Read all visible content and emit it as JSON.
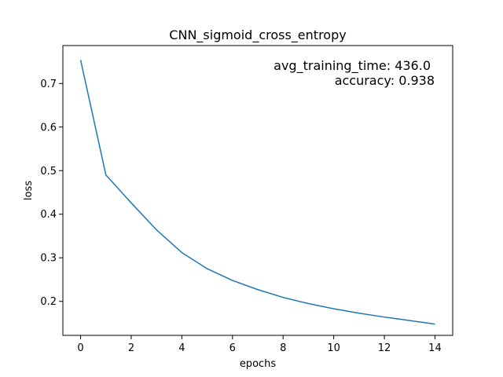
{
  "chart_data": {
    "type": "line",
    "title": "CNN_sigmoid_cross_entropy",
    "xlabel": "epochs",
    "ylabel": "loss",
    "xlim": [
      -0.7,
      14.7
    ],
    "ylim": [
      0.122,
      0.787
    ],
    "xticks": [
      0,
      2,
      4,
      6,
      8,
      10,
      12,
      14
    ],
    "yticks": [
      0.2,
      0.3,
      0.4,
      0.5,
      0.6,
      0.7
    ],
    "grid": false,
    "series": [
      {
        "color": "#1f77b4",
        "x": [
          0,
          1,
          2,
          3,
          4,
          5,
          6,
          7,
          8,
          9,
          10,
          11,
          12,
          13,
          14
        ],
        "y": [
          0.754,
          0.49,
          0.426,
          0.364,
          0.312,
          0.275,
          0.248,
          0.227,
          0.209,
          0.195,
          0.183,
          0.173,
          0.164,
          0.156,
          0.148
        ]
      }
    ],
    "annotations": [
      "avg_training_time: 436.0",
      "accuracy: 0.938"
    ]
  }
}
